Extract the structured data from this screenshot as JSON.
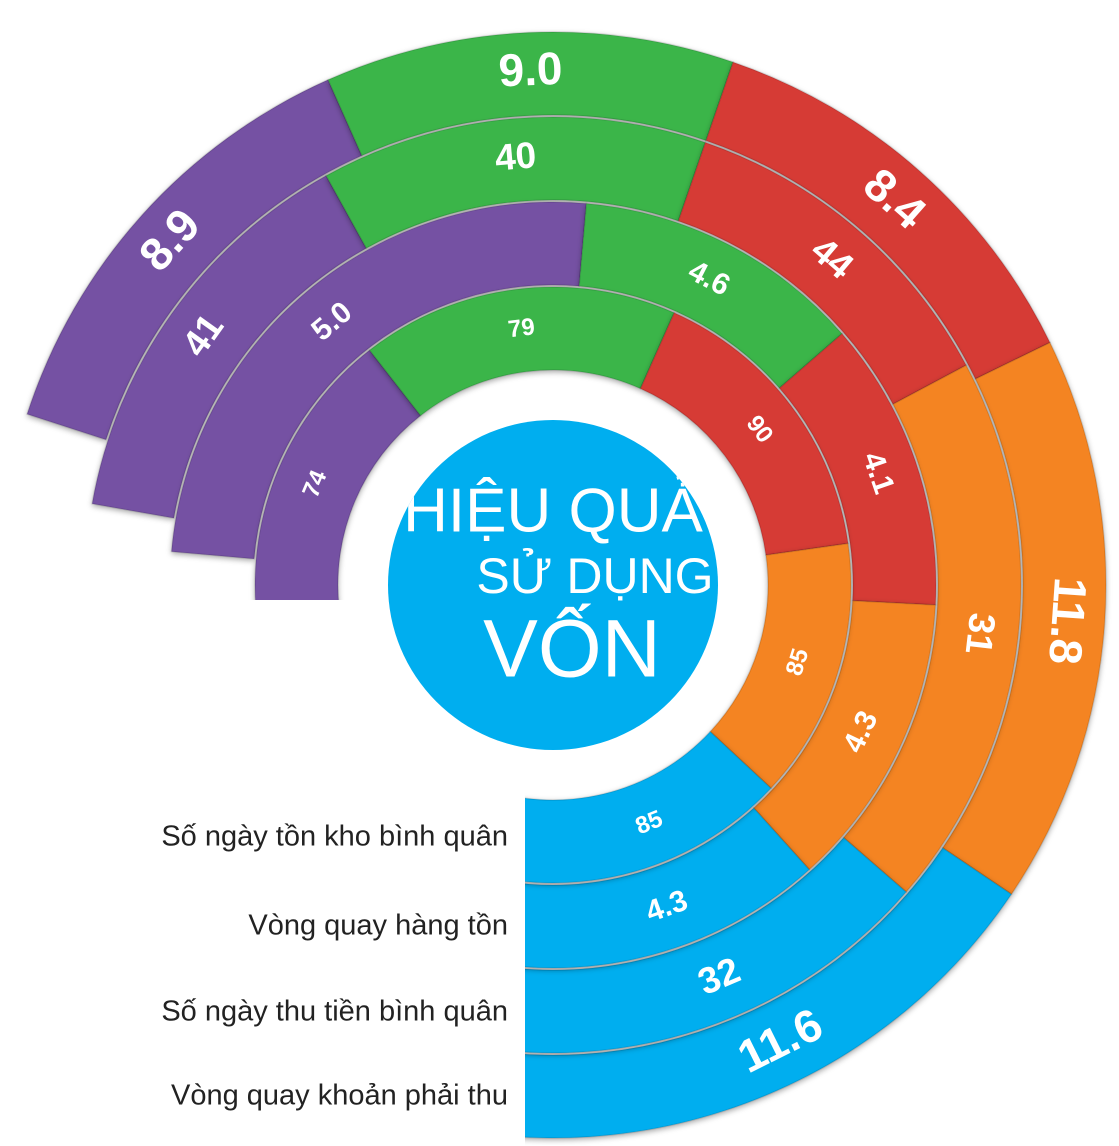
{
  "center": {
    "lines": [
      "HIỆU QUẢ",
      "SỬ DỤNG",
      "VỐN"
    ]
  },
  "legend": [
    "Số ngày tồn kho bình quân",
    "Vòng quay hàng tồn",
    "Số ngày thu tiền bình quân",
    "Vòng quay khoản phải thu"
  ],
  "rings": [
    {
      "segments": [
        "74",
        "79",
        "90",
        "85",
        "85"
      ]
    },
    {
      "segments": [
        "5.0",
        "4.6",
        "4.1",
        "4.3",
        "4.3"
      ]
    },
    {
      "segments": [
        "41",
        "40",
        "44",
        "31",
        "32"
      ]
    },
    {
      "segments": [
        "8.9",
        "9.0",
        "8.4",
        "11.8",
        "11.6"
      ]
    }
  ]
}
